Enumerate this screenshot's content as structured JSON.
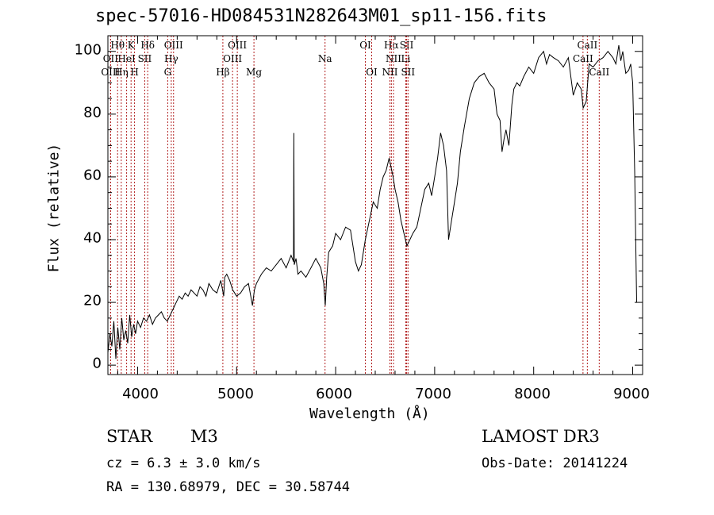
{
  "chart_data": {
    "type": "line",
    "title": "spec-57016-HD084531N282643M01_sp11-156.fits",
    "xlabel": "Wavelength (Å)",
    "ylabel": "Flux (relative)",
    "xlim": [
      3700,
      9100
    ],
    "ylim": [
      -3,
      105
    ],
    "xticks": [
      4000,
      5000,
      6000,
      7000,
      8000,
      9000
    ],
    "yticks": [
      0,
      20,
      40,
      60,
      80,
      100
    ],
    "xtick_labels": [
      "4000",
      "5000",
      "6000",
      "7000",
      "8000",
      "9000"
    ],
    "ytick_labels": [
      "0",
      "20",
      "40",
      "60",
      "80",
      "100"
    ],
    "series": [
      {
        "name": "flux",
        "x": [
          3700,
          3720,
          3740,
          3760,
          3780,
          3800,
          3820,
          3840,
          3860,
          3880,
          3900,
          3920,
          3940,
          3960,
          3980,
          4000,
          4030,
          4060,
          4090,
          4120,
          4150,
          4180,
          4210,
          4240,
          4270,
          4300,
          4330,
          4360,
          4390,
          4420,
          4450,
          4480,
          4510,
          4540,
          4570,
          4600,
          4630,
          4660,
          4690,
          4720,
          4760,
          4800,
          4840,
          4870,
          4880,
          4900,
          4930,
          4960,
          5000,
          5040,
          5080,
          5120,
          5160,
          5180,
          5200,
          5250,
          5300,
          5350,
          5400,
          5450,
          5500,
          5550,
          5575,
          5578,
          5582,
          5600,
          5620,
          5650,
          5700,
          5750,
          5800,
          5850,
          5880,
          5895,
          5910,
          5930,
          5970,
          6000,
          6050,
          6100,
          6150,
          6200,
          6230,
          6260,
          6300,
          6340,
          6380,
          6420,
          6450,
          6480,
          6510,
          6540,
          6560,
          6580,
          6600,
          6630,
          6660,
          6690,
          6720,
          6750,
          6780,
          6820,
          6860,
          6900,
          6940,
          6970,
          7000,
          7030,
          7060,
          7090,
          7120,
          7140,
          7170,
          7200,
          7230,
          7260,
          7300,
          7350,
          7400,
          7450,
          7500,
          7550,
          7600,
          7630,
          7660,
          7680,
          7700,
          7720,
          7750,
          7780,
          7800,
          7830,
          7860,
          7900,
          7950,
          8000,
          8050,
          8100,
          8130,
          8160,
          8200,
          8250,
          8300,
          8350,
          8400,
          8440,
          8480,
          8500,
          8530,
          8560,
          8600,
          8650,
          8700,
          8750,
          8800,
          8830,
          8860,
          8880,
          8900,
          8930,
          8960,
          8980,
          9000,
          9020,
          9040
        ],
        "values": [
          4,
          10,
          6,
          14,
          2,
          12,
          5,
          15,
          8,
          11,
          7,
          16,
          9,
          13,
          10,
          14,
          12,
          15,
          14,
          16,
          13,
          15,
          16,
          17,
          15,
          14,
          16,
          18,
          20,
          22,
          21,
          23,
          22,
          24,
          23,
          22,
          25,
          24,
          22,
          26,
          24,
          23,
          27,
          22,
          28,
          29,
          27,
          24,
          22,
          23,
          25,
          26,
          19,
          24,
          26,
          29,
          31,
          30,
          32,
          34,
          31,
          35,
          33,
          74,
          32,
          34,
          29,
          30,
          28,
          31,
          34,
          31,
          26,
          19,
          28,
          36,
          38,
          42,
          40,
          44,
          43,
          33,
          30,
          32,
          40,
          46,
          52,
          50,
          56,
          60,
          62,
          66,
          63,
          60,
          56,
          52,
          46,
          42,
          38,
          40,
          42,
          44,
          50,
          56,
          58,
          54,
          60,
          66,
          74,
          70,
          62,
          40,
          46,
          52,
          58,
          68,
          76,
          85,
          90,
          92,
          93,
          90,
          88,
          80,
          78,
          68,
          72,
          75,
          70,
          83,
          88,
          90,
          89,
          92,
          95,
          93,
          98,
          100,
          96,
          99,
          98,
          97,
          95,
          98,
          86,
          90,
          88,
          82,
          84,
          96,
          95,
          97,
          98,
          100,
          98,
          96,
          102,
          97,
          100,
          93,
          94,
          96,
          90,
          62,
          20
        ]
      }
    ],
    "spectral_lines": [
      {
        "label": "Hθ",
        "wavelength": 3798,
        "row": 1
      },
      {
        "label": "OII",
        "wavelength": 3727,
        "row": 2
      },
      {
        "label": "OIII",
        "wavelength": 3727,
        "row": 3
      },
      {
        "label": "K",
        "wavelength": 3934,
        "row": 1
      },
      {
        "label": "HeI",
        "wavelength": 3889,
        "row": 2
      },
      {
        "label": "Hη",
        "wavelength": 3835,
        "row": 3
      },
      {
        "label": "SII",
        "wavelength": 4072,
        "row": 2
      },
      {
        "label": "H",
        "wavelength": 3969,
        "row": 3
      },
      {
        "label": "Hδ",
        "wavelength": 4102,
        "row": 1
      },
      {
        "label": "OIII",
        "wavelength": 4363,
        "row": 1
      },
      {
        "label": "Hγ",
        "wavelength": 4340,
        "row": 2
      },
      {
        "label": "G",
        "wavelength": 4304,
        "row": 3
      },
      {
        "label": "OIII",
        "wavelength": 5007,
        "row": 1
      },
      {
        "label": "OIII",
        "wavelength": 4959,
        "row": 2
      },
      {
        "label": "Hβ",
        "wavelength": 4861,
        "row": 3
      },
      {
        "label": "Mg",
        "wavelength": 5175,
        "row": 3
      },
      {
        "label": "Na",
        "wavelength": 5893,
        "row": 2
      },
      {
        "label": "OI",
        "wavelength": 6300,
        "row": 1
      },
      {
        "label": "OI",
        "wavelength": 6364,
        "row": 3
      },
      {
        "label": "Hα",
        "wavelength": 6563,
        "row": 1
      },
      {
        "label": "SII",
        "wavelength": 6717,
        "row": 1
      },
      {
        "label": "NII",
        "wavelength": 6584,
        "row": 2
      },
      {
        "label": "Li",
        "wavelength": 6708,
        "row": 2
      },
      {
        "label": "NII",
        "wavelength": 6548,
        "row": 3
      },
      {
        "label": "SII",
        "wavelength": 6731,
        "row": 3
      },
      {
        "label": "CaII",
        "wavelength": 8542,
        "row": 1
      },
      {
        "label": "CaII",
        "wavelength": 8498,
        "row": 2
      },
      {
        "label": "CaII",
        "wavelength": 8662,
        "row": 3
      }
    ],
    "colors": {
      "line": "#000000",
      "marker": "#b22222",
      "axis": "#000000"
    }
  },
  "footer": {
    "class": "STAR",
    "subclass": "M3",
    "survey": "LAMOST DR3",
    "cz": "cz = 6.3 ± 3.0 km/s",
    "obs_date": "Obs-Date: 20141224",
    "coords": "RA = 130.68979, DEC =  30.58744"
  }
}
